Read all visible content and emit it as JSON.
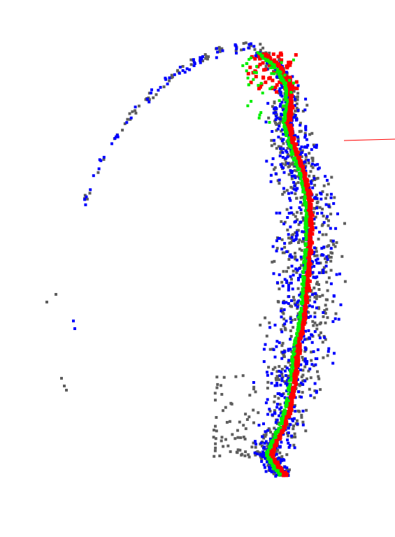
{
  "view": {
    "background": "#ffffff",
    "point_classes": [
      {
        "key": "gray",
        "color": "#5f5f5f"
      },
      {
        "key": "blue",
        "color": "#0000ff"
      },
      {
        "key": "red",
        "color": "#ff0000"
      },
      {
        "key": "green",
        "color": "#00ee00"
      }
    ],
    "indicator_line_color": "#ff0000"
  }
}
